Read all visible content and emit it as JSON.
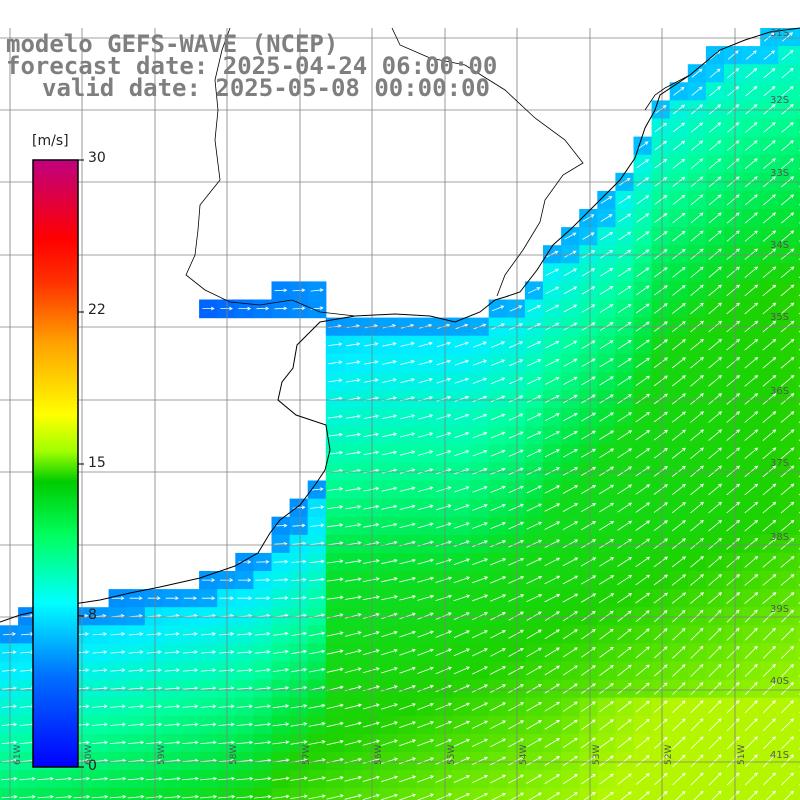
{
  "title": {
    "line1": "modelo GEFS-WAVE (NCEP)",
    "line2": "forecast date: 2025-04-24 06:00:00",
    "line3": "valid date: 2025-05-08 00:00:00"
  },
  "colorbar": {
    "unit": "[m/s]",
    "ticks": [
      "30",
      "22",
      "15",
      "8",
      "0"
    ],
    "tick_values": [
      30,
      22,
      15,
      8,
      0
    ],
    "colors": [
      "#0000ff",
      "#00a0ff",
      "#00ffff",
      "#00ff80",
      "#00cc00",
      "#80ff00",
      "#ffff00",
      "#ffa000",
      "#ff4000",
      "#ff0000",
      "#e0005a",
      "#c0007f"
    ]
  },
  "map": {
    "lat_labels": [
      "31S",
      "32S",
      "33S",
      "34S",
      "35S",
      "36S",
      "37S",
      "38S",
      "39S",
      "40S",
      "41S"
    ],
    "lon_labels": [
      "61W",
      "60W",
      "59W",
      "58W",
      "57W",
      "56W",
      "55W",
      "54W",
      "53W",
      "52W",
      "51W"
    ],
    "field": "wind speed with direction arrows"
  },
  "colors": {
    "land": "#ffffff",
    "grid": "#808080",
    "coast": "#000000",
    "arrow": "#ffffff",
    "title": "#7f7f7f"
  }
}
